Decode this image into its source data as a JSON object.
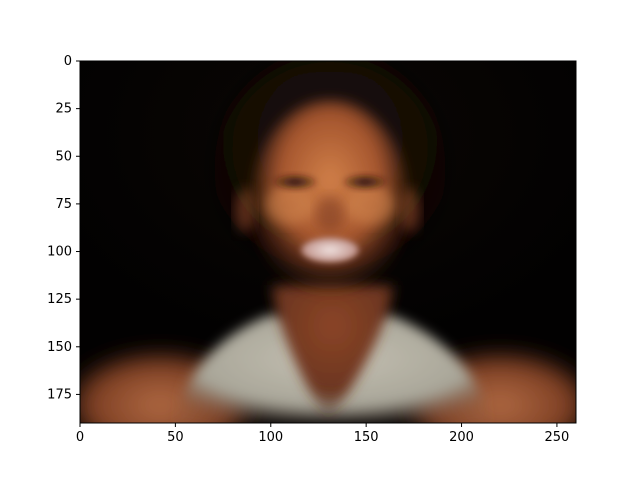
{
  "figure": {
    "background": "#ffffff",
    "axes_color": "#000000"
  },
  "image": {
    "description_type": "image-display",
    "dominant_colors": {
      "background": "#050302",
      "skin_mid": "#9b4f2a",
      "skin_light": "#c87a45",
      "hair": "#140a06",
      "shirt": "#b7b3a6",
      "mouth": "#e7d3d0"
    }
  },
  "chart_data": {
    "type": "heatmap",
    "title": "",
    "xlabel": "",
    "ylabel": "",
    "xlim": [
      0,
      260
    ],
    "ylim": [
      190,
      0
    ],
    "x_ticks": [
      "0",
      "50",
      "100",
      "150",
      "200",
      "250"
    ],
    "y_ticks": [
      "0",
      "25",
      "50",
      "75",
      "100",
      "125",
      "150",
      "175"
    ],
    "grid": false
  }
}
